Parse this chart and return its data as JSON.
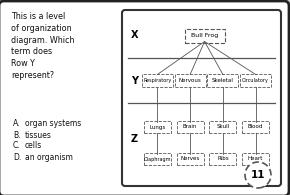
{
  "bg_color": "#d0d0d0",
  "card_bg": "#ffffff",
  "title_text": "This is a level\nof organization\ndiagram. Which\nterm does\nRow Y\nrepresent?",
  "choices": [
    [
      "A.",
      "organ systems"
    ],
    [
      "B.",
      "tissues"
    ],
    [
      "C.",
      "cells"
    ],
    [
      "D.",
      "an organism"
    ]
  ],
  "page_num": "11",
  "row_X_label": "X",
  "row_Y_label": "Y",
  "row_Z_label": "Z",
  "top_item": "Bull Frog",
  "row_Y_items": [
    "Respiratory",
    "Nervous",
    "Skeletal",
    "Circulatory"
  ],
  "row_Z_items_top": [
    "Lungs",
    "Brain",
    "Skull",
    "Blood"
  ],
  "row_Z_items_bot": [
    "Diaphragm",
    "Nerves",
    "Ribs",
    "Heart"
  ],
  "text_color": "#111111",
  "line_color": "#555555",
  "diag_edge": "#333333"
}
